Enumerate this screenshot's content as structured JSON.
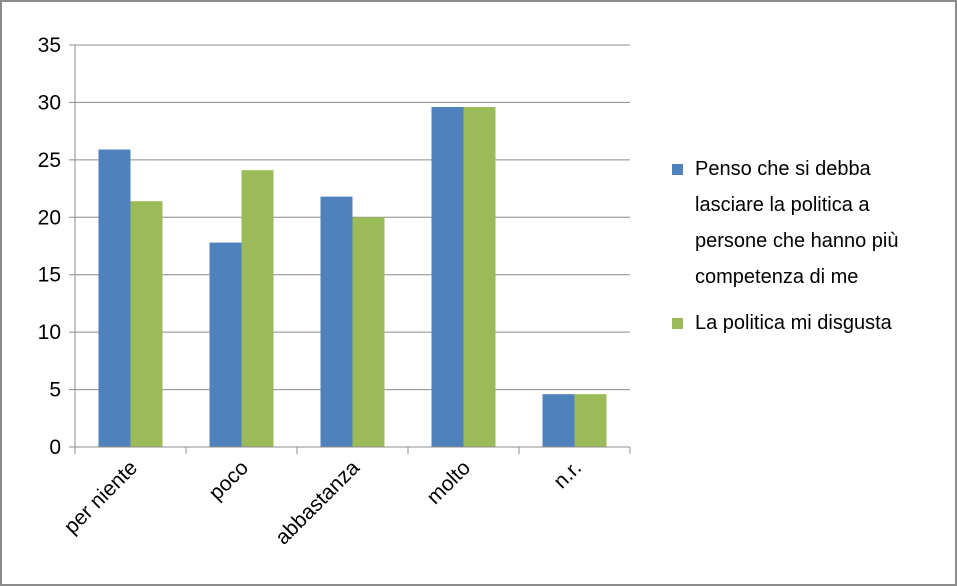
{
  "chart_data": {
    "type": "bar",
    "categories": [
      "per niente",
      "poco",
      "abbastanza",
      "molto",
      "n.r."
    ],
    "series": [
      {
        "name": "Penso che si debba lasciare la politica a persone che hanno più competenza di me",
        "legend_lines": [
          "Penso che si debba",
          "lasciare la politica a",
          "persone che hanno più",
          "competenza di me"
        ],
        "color": "#4F81BD",
        "values": [
          25.9,
          17.8,
          21.8,
          29.6,
          4.6
        ]
      },
      {
        "name": "La politica mi disgusta",
        "legend_lines": [
          "La politica mi disgusta"
        ],
        "color": "#9BBB59",
        "values": [
          21.4,
          24.1,
          20.0,
          29.6,
          4.6
        ]
      }
    ],
    "ylim": [
      0,
      35
    ],
    "yticks": [
      0,
      5,
      10,
      15,
      20,
      25,
      30,
      35
    ],
    "grid": true,
    "legend_position": "right",
    "title": "",
    "xlabel": "",
    "ylabel": ""
  }
}
